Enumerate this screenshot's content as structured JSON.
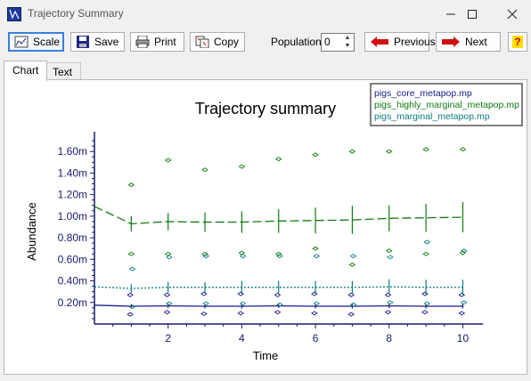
{
  "window": {
    "title": "Trajectory Summary"
  },
  "toolbar": {
    "scale_label": "Scale",
    "save_label": "Save",
    "print_label": "Print",
    "copy_label": "Copy",
    "population_label": "Population:",
    "population_value": "0",
    "previous_label": "Previous",
    "next_label": "Next",
    "help_label": "?"
  },
  "tabs": [
    {
      "label": "Chart"
    },
    {
      "label": "Text"
    }
  ],
  "legend": {
    "entries": [
      {
        "label": "pigs_core_metapop.mp",
        "color": "#1b1b8a"
      },
      {
        "label": "pigs_highly_marginal_metapop.mp",
        "color": "#107a10"
      },
      {
        "label": "pigs_marginal_metapop.mp",
        "color": "#0e7e7e"
      }
    ]
  },
  "chart_data": {
    "type": "line",
    "title": "Trajectory summary",
    "xlabel": "Time",
    "ylabel": "Abundance",
    "xlim": [
      0,
      10.4
    ],
    "ylim": [
      0,
      1.75
    ],
    "x_ticks": [
      2,
      4,
      6,
      8,
      10
    ],
    "x_tick_labels": [
      "2",
      "4",
      "6",
      "8",
      "10"
    ],
    "y_ticks": [
      0.2,
      0.4,
      0.6,
      0.8,
      1.0,
      1.2,
      1.4,
      1.6
    ],
    "y_tick_labels": [
      "0.20m",
      "0.40m",
      "0.60m",
      "0.80m",
      "1.00m",
      "1.20m",
      "1.40m",
      "1.60m"
    ],
    "x": [
      0,
      1,
      2,
      3,
      4,
      5,
      6,
      7,
      8,
      9,
      10
    ],
    "series": [
      {
        "name": "pigs_core_metapop.mp",
        "color": "#1b1b8a",
        "style": "solid",
        "mean": [
          0.175,
          0.165,
          0.168,
          0.165,
          0.165,
          0.168,
          0.165,
          0.165,
          0.168,
          0.165,
          0.165
        ],
        "sd": [
          0,
          0.02,
          0.02,
          0.02,
          0.02,
          0.02,
          0.02,
          0.02,
          0.02,
          0.02,
          0.02
        ],
        "min": [
          null,
          0.09,
          0.11,
          0.095,
          0.1,
          0.11,
          0.1,
          0.09,
          0.11,
          0.11,
          0.1
        ],
        "max": [
          null,
          0.27,
          0.27,
          0.28,
          0.28,
          0.27,
          0.28,
          0.27,
          0.27,
          0.28,
          0.27
        ]
      },
      {
        "name": "pigs_highly_marginal_metapop.mp",
        "color": "#107a10",
        "style": "dash",
        "mean": [
          1.09,
          0.93,
          0.95,
          0.945,
          0.945,
          0.955,
          0.96,
          0.965,
          0.98,
          0.985,
          0.99
        ],
        "sd": [
          0,
          0.07,
          0.08,
          0.09,
          0.1,
          0.11,
          0.12,
          0.13,
          0.12,
          0.13,
          0.14
        ],
        "min": [
          null,
          0.65,
          0.65,
          0.65,
          0.66,
          0.65,
          0.7,
          0.55,
          0.68,
          0.65,
          0.66
        ],
        "max": [
          null,
          1.29,
          1.52,
          1.43,
          1.46,
          1.53,
          1.57,
          1.6,
          1.6,
          1.62,
          1.62
        ]
      },
      {
        "name": "pigs_marginal_metapop.mp",
        "color": "#0e7e7e",
        "style": "dot",
        "mean": [
          0.345,
          0.33,
          0.34,
          0.34,
          0.34,
          0.34,
          0.34,
          0.34,
          0.345,
          0.34,
          0.34
        ],
        "sd": [
          0,
          0.04,
          0.05,
          0.05,
          0.06,
          0.06,
          0.06,
          0.06,
          0.07,
          0.07,
          0.07
        ],
        "min": [
          null,
          0.16,
          0.19,
          0.19,
          0.19,
          0.18,
          0.19,
          0.18,
          0.2,
          0.19,
          0.2
        ],
        "max": [
          null,
          0.51,
          0.62,
          0.63,
          0.63,
          0.63,
          0.63,
          0.63,
          0.62,
          0.76,
          0.68
        ]
      }
    ]
  }
}
